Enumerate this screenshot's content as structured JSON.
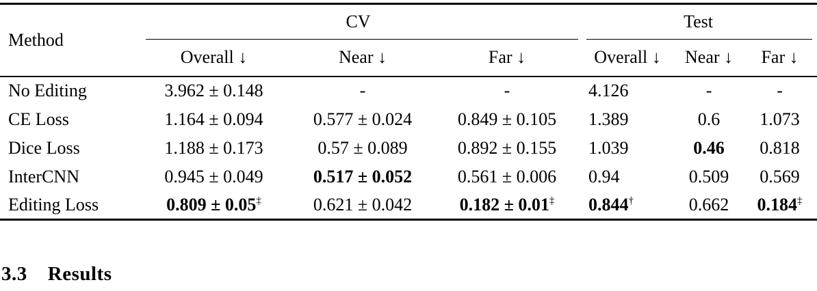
{
  "colors": {
    "text": "#000000",
    "background": "#ffffff"
  },
  "table": {
    "method_header": "Method",
    "col_groups": [
      {
        "label": "CV",
        "span": 3
      },
      {
        "label": "Test",
        "span": 3
      }
    ],
    "sub_headers": [
      "Overall ↓",
      "Near ↓",
      "Far ↓",
      "Overall ↓",
      "Near ↓",
      "Far ↓"
    ],
    "rows": [
      {
        "method": "No Editing",
        "cells": [
          {
            "text": "3.962 ± 0.148"
          },
          {
            "text": "-"
          },
          {
            "text": "-"
          },
          {
            "text": "4.126"
          },
          {
            "text": "-"
          },
          {
            "text": "-"
          }
        ]
      },
      {
        "method": "CE Loss",
        "cells": [
          {
            "text": "1.164 ± 0.094"
          },
          {
            "text": "0.577 ± 0.024"
          },
          {
            "text": "0.849 ± 0.105"
          },
          {
            "text": "1.389"
          },
          {
            "text": "0.6"
          },
          {
            "text": "1.073"
          }
        ]
      },
      {
        "method": "Dice Loss",
        "cells": [
          {
            "text": "1.188 ± 0.173"
          },
          {
            "text": "0.57 ± 0.089"
          },
          {
            "text": "0.892 ± 0.155"
          },
          {
            "text": "1.039"
          },
          {
            "text": "0.46",
            "bold": true
          },
          {
            "text": "0.818"
          }
        ]
      },
      {
        "method": "InterCNN",
        "cells": [
          {
            "text": "0.945 ± 0.049"
          },
          {
            "text": "0.517 ± 0.052",
            "bold": true
          },
          {
            "text": "0.561 ± 0.006"
          },
          {
            "text": "0.94"
          },
          {
            "text": "0.509"
          },
          {
            "text": "0.569"
          }
        ]
      },
      {
        "method": "Editing Loss",
        "cells": [
          {
            "text": "0.809 ± 0.05",
            "bold": true,
            "sup": "‡"
          },
          {
            "text": "0.621 ± 0.042"
          },
          {
            "text": "0.182 ± 0.01",
            "bold": true,
            "sup": "‡"
          },
          {
            "text": "0.844",
            "bold": true,
            "sup": "†"
          },
          {
            "text": "0.662"
          },
          {
            "text": "0.184",
            "bold": true,
            "sup": "‡"
          }
        ]
      }
    ]
  },
  "section_heading": {
    "number": "3.3",
    "title": "Results"
  }
}
